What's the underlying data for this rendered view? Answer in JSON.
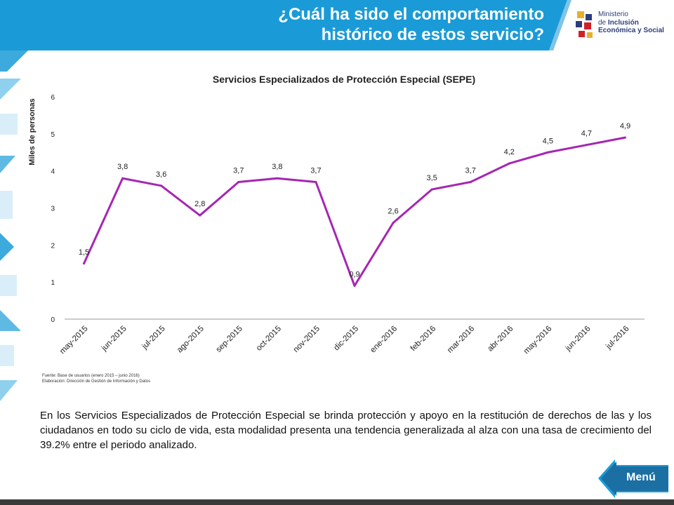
{
  "header": {
    "title_line1": "¿Cuál ha sido el comportamiento",
    "title_line2": "histórico de estos servicio?",
    "logo": {
      "line1": "Ministerio",
      "line2_prefix": "de ",
      "line2_bold": "Inclusión",
      "line3": "Económica y Social"
    }
  },
  "colors": {
    "banner": "#1a9bd7",
    "line": "#a626b3",
    "mosaic_blue": "#1a9bd7",
    "mosaic_light": "#d9eef8"
  },
  "chart_data": {
    "type": "line",
    "title": "Servicios Especializados de Protección Especial (SEPE)",
    "ylabel": "Miles de personas",
    "xlabel": "",
    "ylim": [
      0,
      6
    ],
    "yticks": [
      "0",
      "1",
      "2",
      "3",
      "4",
      "5",
      "6"
    ],
    "grid": false,
    "categories": [
      "may-2015",
      "jun-2015",
      "jul-2015",
      "ago-2015",
      "sep-2015",
      "oct-2015",
      "nov-2015",
      "dic-2015",
      "ene-2016",
      "feb-2016",
      "mar-2016",
      "abr-2016",
      "may-2016",
      "jun-2016",
      "jul-2016"
    ],
    "values": [
      1.5,
      3.8,
      3.6,
      2.8,
      3.7,
      3.8,
      3.7,
      0.9,
      2.6,
      3.5,
      3.7,
      4.2,
      4.5,
      4.7,
      4.9
    ],
    "data_labels": [
      "1,5",
      "3,8",
      "3,6",
      "2,8",
      "3,7",
      "3,8",
      "3,7",
      "0,9",
      "2,6",
      "3,5",
      "3,7",
      "4,2",
      "4,5",
      "4,7",
      "4,9"
    ]
  },
  "source": {
    "line1": "Fuente: Base de usuarios (enero 2015 – junio 2016)",
    "line2": "Elaboración: Dirección de Gestión de Información y Datos"
  },
  "paragraph": "En los Servicios Especializados de Protección Especial se brinda protección y apoyo en la restitución de derechos de las y los ciudadanos en todo su ciclo de vida, esta modalidad presenta una tendencia generalizada al alza con una tasa de crecimiento del 39.2% entre el periodo analizado.",
  "menu": {
    "label": "Menú"
  }
}
